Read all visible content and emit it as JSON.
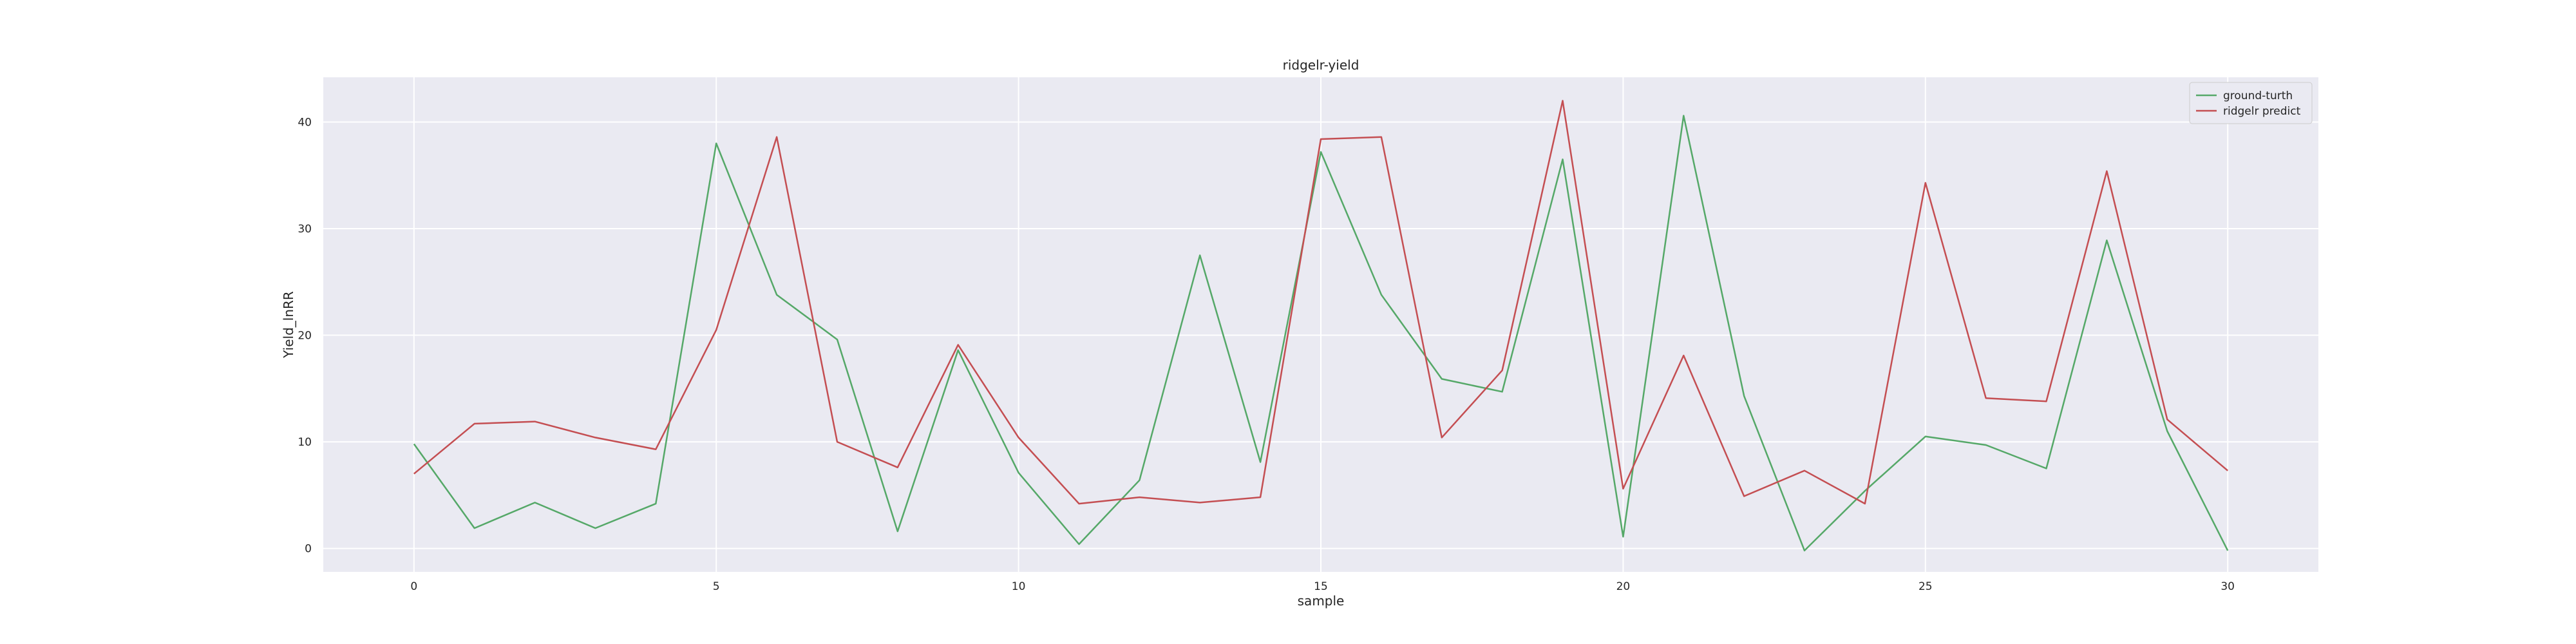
{
  "chart_data": {
    "type": "line",
    "title": "ridgelr-yield",
    "xlabel": "sample",
    "ylabel": "Yield_lnRR",
    "x": [
      0,
      1,
      2,
      3,
      4,
      5,
      6,
      7,
      8,
      9,
      10,
      11,
      12,
      13,
      14,
      15,
      16,
      17,
      18,
      19,
      20,
      21,
      22,
      23,
      24,
      25,
      26,
      27,
      28,
      29,
      30
    ],
    "xlim": [
      -1.5,
      31.5
    ],
    "ylim": [
      -2.2,
      44.2
    ],
    "xticks": [
      0,
      5,
      10,
      15,
      20,
      25,
      30
    ],
    "yticks": [
      0,
      10,
      20,
      30,
      40
    ],
    "grid": true,
    "legend_position": "top-right",
    "series": [
      {
        "name": "ground-turth",
        "color": "#55a868",
        "values": [
          9.8,
          1.9,
          4.3,
          1.9,
          4.2,
          38.0,
          23.8,
          19.6,
          1.6,
          18.6,
          7.1,
          0.4,
          6.4,
          27.5,
          8.1,
          37.2,
          23.8,
          15.9,
          14.7,
          36.5,
          1.1,
          40.6,
          14.3,
          -0.2,
          5.4,
          10.5,
          9.7,
          7.5,
          28.9,
          11.0,
          -0.2
        ]
      },
      {
        "name": "ridgelr predict",
        "color": "#c44e52",
        "values": [
          7.0,
          11.7,
          11.9,
          10.4,
          9.3,
          20.5,
          38.6,
          10.0,
          7.6,
          19.1,
          10.4,
          4.2,
          4.8,
          4.3,
          4.8,
          38.4,
          38.6,
          10.4,
          16.7,
          42.0,
          5.6,
          18.1,
          4.9,
          7.3,
          4.2,
          34.3,
          14.1,
          13.8,
          35.4,
          12.1,
          7.3
        ]
      }
    ]
  }
}
